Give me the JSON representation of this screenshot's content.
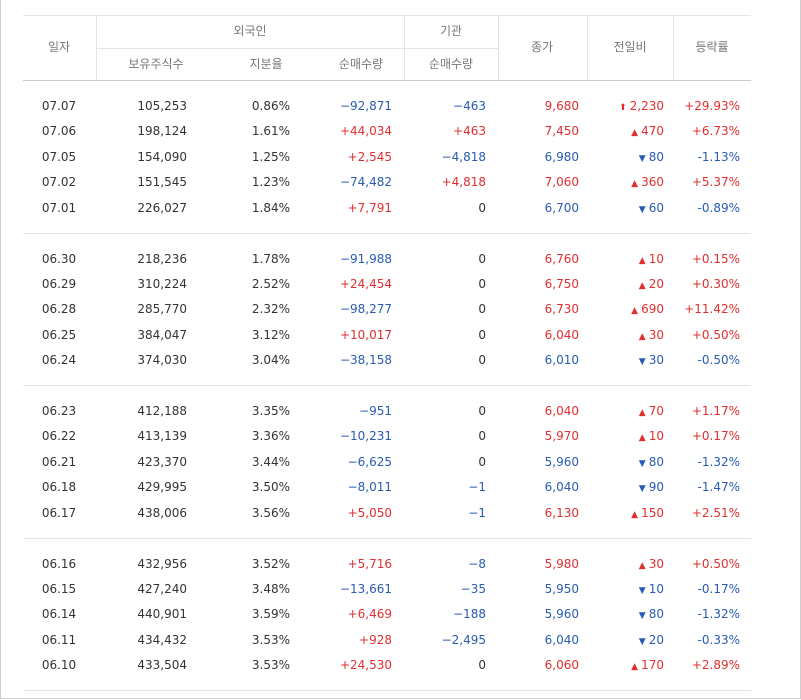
{
  "table": {
    "header": {
      "date": "일자",
      "foreign": "외국인",
      "institution": "기관",
      "close": "종가",
      "change": "전일비",
      "rate": "등락률",
      "holdings": "보유주식수",
      "ratio": "지분율",
      "foreign_net": "순매수량",
      "institution_net": "순매수량"
    },
    "groups": [
      [
        [
          "07.07",
          "105,253",
          "0.86%",
          "−92,871",
          "−463",
          "9,680",
          "2,230",
          "+29.93%"
        ],
        [
          "07.06",
          "198,124",
          "1.61%",
          "+44,034",
          "+463",
          "7,450",
          "470",
          "+6.73%"
        ],
        [
          "07.05",
          "154,090",
          "1.25%",
          "+2,545",
          "−4,818",
          "6,980",
          "80",
          "-1.13%"
        ],
        [
          "07.02",
          "151,545",
          "1.23%",
          "−74,482",
          "+4,818",
          "7,060",
          "360",
          "+5.37%"
        ],
        [
          "07.01",
          "226,027",
          "1.84%",
          "+7,791",
          "0",
          "6,700",
          "60",
          "-0.89%"
        ]
      ],
      [
        [
          "06.30",
          "218,236",
          "1.78%",
          "−91,988",
          "0",
          "6,760",
          "10",
          "+0.15%"
        ],
        [
          "06.29",
          "310,224",
          "2.52%",
          "+24,454",
          "0",
          "6,750",
          "20",
          "+0.30%"
        ],
        [
          "06.28",
          "285,770",
          "2.32%",
          "−98,277",
          "0",
          "6,730",
          "690",
          "+11.42%"
        ],
        [
          "06.25",
          "384,047",
          "3.12%",
          "+10,017",
          "0",
          "6,040",
          "30",
          "+0.50%"
        ],
        [
          "06.24",
          "374,030",
          "3.04%",
          "−38,158",
          "0",
          "6,010",
          "30",
          "-0.50%"
        ]
      ],
      [
        [
          "06.23",
          "412,188",
          "3.35%",
          "−951",
          "0",
          "6,040",
          "70",
          "+1.17%"
        ],
        [
          "06.22",
          "413,139",
          "3.36%",
          "−10,231",
          "0",
          "5,970",
          "10",
          "+0.17%"
        ],
        [
          "06.21",
          "423,370",
          "3.44%",
          "−6,625",
          "0",
          "5,960",
          "80",
          "-1.32%"
        ],
        [
          "06.18",
          "429,995",
          "3.50%",
          "−8,011",
          "−1",
          "6,040",
          "90",
          "-1.47%"
        ],
        [
          "06.17",
          "438,006",
          "3.56%",
          "+5,050",
          "−1",
          "6,130",
          "150",
          "+2.51%"
        ]
      ],
      [
        [
          "06.16",
          "432,956",
          "3.52%",
          "+5,716",
          "−8",
          "5,980",
          "30",
          "+0.50%"
        ],
        [
          "06.15",
          "427,240",
          "3.48%",
          "−13,661",
          "−35",
          "5,950",
          "10",
          "-0.17%"
        ],
        [
          "06.14",
          "440,901",
          "3.59%",
          "+6,469",
          "−188",
          "5,960",
          "80",
          "-1.32%"
        ],
        [
          "06.11",
          "434,432",
          "3.53%",
          "+928",
          "−2,495",
          "6,040",
          "20",
          "-0.33%"
        ],
        [
          "06.10",
          "433,504",
          "3.53%",
          "+24,530",
          "0",
          "6,060",
          "170",
          "+2.89%"
        ]
      ]
    ],
    "trends": [
      [
        "limit-up",
        "up",
        "down",
        "up",
        "down"
      ],
      [
        "up",
        "up",
        "up",
        "up",
        "down"
      ],
      [
        "up",
        "up",
        "down",
        "down",
        "up"
      ],
      [
        "up",
        "down",
        "down",
        "down",
        "up"
      ]
    ]
  }
}
